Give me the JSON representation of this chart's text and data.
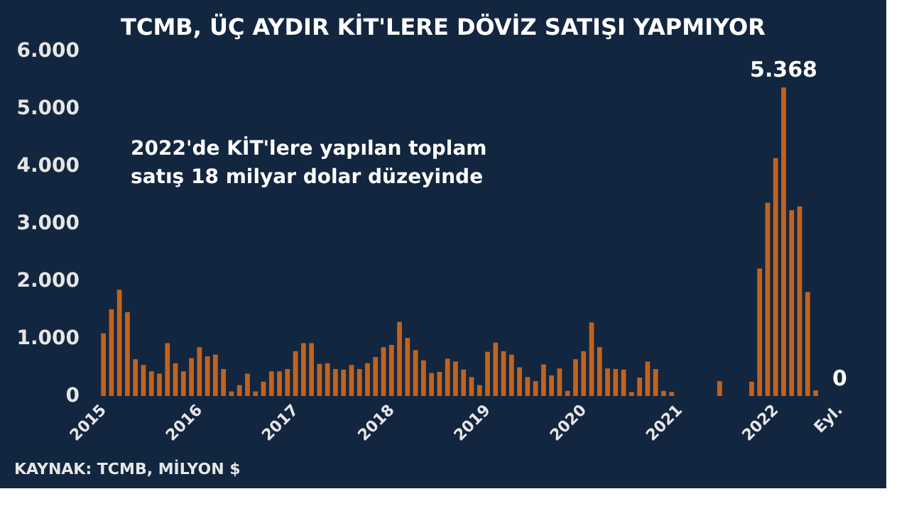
{
  "chart_data": {
    "type": "bar",
    "title": "TCMB, ÜÇ AYDIR KİT'LERE DÖVİZ SATIŞI YAPMIYOR",
    "annotations": [
      "2022'de KİT'lere yapılan toplam\nsatış 18 milyar dolar düzeyinde",
      "KAYNAK: TCMB, MİLYON $"
    ],
    "categories": [
      "2015",
      null,
      null,
      null,
      null,
      null,
      null,
      null,
      null,
      null,
      null,
      null,
      "2016",
      null,
      null,
      null,
      null,
      null,
      null,
      null,
      null,
      null,
      null,
      null,
      "2017",
      null,
      null,
      null,
      null,
      null,
      null,
      null,
      null,
      null,
      null,
      null,
      "2018",
      null,
      null,
      null,
      null,
      null,
      null,
      null,
      null,
      null,
      null,
      null,
      "2019",
      null,
      null,
      null,
      null,
      null,
      null,
      null,
      null,
      null,
      null,
      null,
      "2020",
      null,
      null,
      null,
      null,
      null,
      null,
      null,
      null,
      null,
      null,
      null,
      "2021",
      null,
      null,
      null,
      null,
      null,
      null,
      null,
      null,
      null,
      null,
      null,
      "2022",
      null,
      null,
      null,
      null,
      null,
      null,
      null,
      "Eyl."
    ],
    "values": [
      1090,
      1510,
      1850,
      1460,
      640,
      540,
      430,
      390,
      920,
      570,
      430,
      660,
      850,
      690,
      720,
      470,
      80,
      190,
      390,
      80,
      250,
      430,
      430,
      470,
      780,
      920,
      920,
      560,
      570,
      470,
      460,
      540,
      470,
      570,
      680,
      850,
      890,
      1290,
      1010,
      800,
      620,
      400,
      420,
      650,
      600,
      460,
      330,
      190,
      770,
      930,
      780,
      720,
      500,
      330,
      260,
      550,
      360,
      480,
      90,
      640,
      780,
      1280,
      850,
      480,
      470,
      460,
      70,
      320,
      600,
      470,
      90,
      70,
      null,
      null,
      null,
      null,
      null,
      260,
      null,
      null,
      null,
      250,
      2220,
      3360,
      4140,
      5368,
      3230,
      3300,
      1810,
      100,
      null,
      null,
      0
    ],
    "value_labels": [
      null,
      null,
      null,
      null,
      null,
      null,
      null,
      null,
      null,
      null,
      null,
      null,
      null,
      null,
      null,
      null,
      null,
      null,
      null,
      null,
      null,
      null,
      null,
      null,
      null,
      null,
      null,
      null,
      null,
      null,
      null,
      null,
      null,
      null,
      null,
      null,
      null,
      null,
      null,
      null,
      null,
      null,
      null,
      null,
      null,
      null,
      null,
      null,
      null,
      null,
      null,
      null,
      null,
      null,
      null,
      null,
      null,
      null,
      null,
      null,
      null,
      null,
      null,
      null,
      null,
      null,
      null,
      null,
      null,
      null,
      null,
      null,
      null,
      null,
      null,
      null,
      null,
      null,
      null,
      null,
      null,
      null,
      null,
      null,
      null,
      "5.368",
      null,
      null,
      null,
      null,
      null,
      null,
      "0"
    ],
    "color": "#c0631f",
    "ylim": [
      0,
      6000
    ],
    "yticks": [
      {
        "value": 0,
        "label": "0"
      },
      {
        "value": 1000,
        "label": "1.000"
      },
      {
        "value": 2000,
        "label": "2.000"
      },
      {
        "value": 3000,
        "label": "3.000"
      },
      {
        "value": 4000,
        "label": "4.000"
      },
      {
        "value": 5000,
        "label": "5.000"
      },
      {
        "value": 6000,
        "label": "6.000"
      }
    ],
    "grid": false
  }
}
